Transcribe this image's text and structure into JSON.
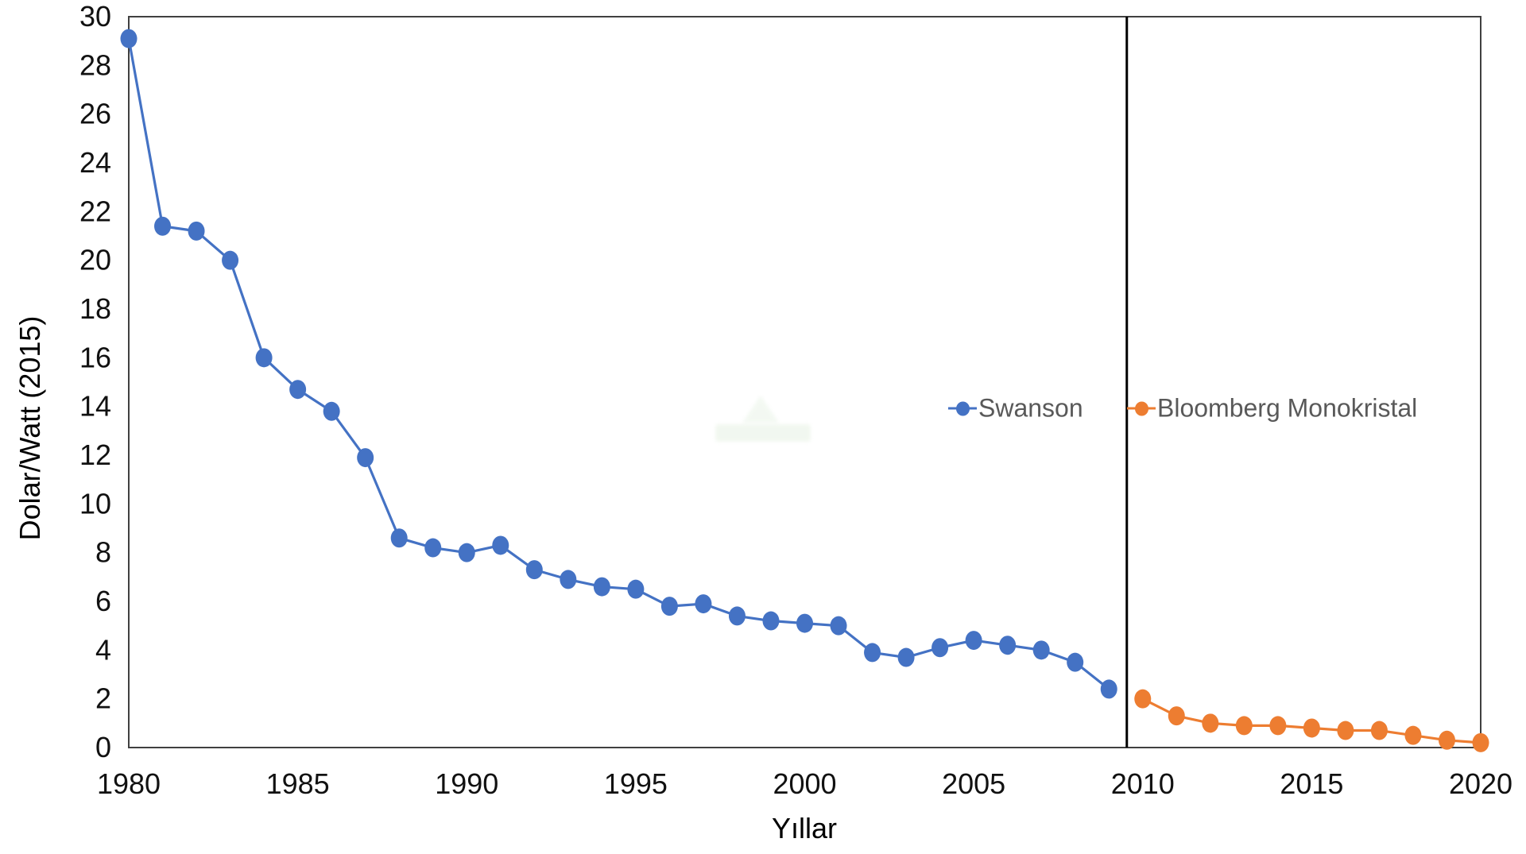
{
  "chart_data": {
    "type": "line",
    "title": "",
    "xlabel": "Yıllar",
    "ylabel": "Dolar/Watt (2015)",
    "xlim": [
      1980,
      2020
    ],
    "ylim": [
      0,
      30
    ],
    "x_ticks": [
      1980,
      1985,
      1990,
      1995,
      2000,
      2005,
      2010,
      2015,
      2020
    ],
    "y_ticks": [
      0,
      2,
      4,
      6,
      8,
      10,
      12,
      14,
      16,
      18,
      20,
      22,
      24,
      26,
      28,
      30
    ],
    "grid": "off",
    "legend_position": "inside-middle-right",
    "divider_line_year": 2009.53,
    "series": [
      {
        "name": "Swanson",
        "color": "#4472C4",
        "x": [
          1980,
          1981,
          1982,
          1983,
          1984,
          1985,
          1986,
          1987,
          1988,
          1989,
          1990,
          1991,
          1992,
          1993,
          1994,
          1995,
          1996,
          1997,
          1998,
          1999,
          2000,
          2001,
          2002,
          2003,
          2004,
          2005,
          2006,
          2007,
          2008,
          2009
        ],
        "values": [
          29.1,
          21.4,
          21.2,
          20.0,
          16.0,
          14.7,
          13.8,
          11.9,
          8.6,
          8.2,
          8.0,
          8.3,
          7.3,
          6.9,
          6.6,
          6.5,
          5.8,
          5.9,
          5.4,
          5.2,
          5.1,
          5.0,
          3.9,
          3.7,
          4.1,
          4.4,
          4.2,
          4.0,
          3.5,
          2.4
        ]
      },
      {
        "name": "Bloomberg Monokristal",
        "color": "#ED7D31",
        "x": [
          2010,
          2011,
          2012,
          2013,
          2014,
          2015,
          2016,
          2017,
          2018,
          2019,
          2020
        ],
        "values": [
          2.0,
          1.3,
          1.0,
          0.9,
          0.9,
          0.8,
          0.7,
          0.7,
          0.5,
          0.3,
          0.2
        ]
      }
    ]
  },
  "colors": {
    "frame": "#404040",
    "divider": "#000000",
    "tick_text": "#111111",
    "legend_text": "#595959",
    "background": "#ffffff"
  }
}
